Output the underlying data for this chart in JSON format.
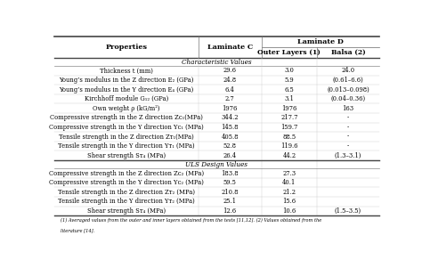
{
  "col_headers": [
    "Properties",
    "Laminate C",
    "Outer Layers (1)",
    "Balsa (2)"
  ],
  "group_header": "Laminate D",
  "section_char": "Characteristic Values",
  "section_uls": "ULS Design Values",
  "rows_char": [
    [
      "Thickness t (mm)",
      "29.6",
      "3.0",
      "24.0"
    ],
    [
      "Young’s modulus in the Z direction E₂ (GPa)",
      "24.8",
      "5.9",
      "(0.61–6.6)"
    ],
    [
      "Young’s modulus in the Y direction E₄ (GPa)",
      "6.4",
      "6.5",
      "(0.013–0.098)"
    ],
    [
      "Kirchhoff module G₁₂ (GPa)",
      "2.7",
      "3.1",
      "(0.04–0.36)"
    ],
    [
      "Own weight ρ (kG/m²)",
      "1976",
      "1976",
      "163"
    ],
    [
      "Compressive strength in the Z direction Zᴄ₁(MPa)",
      "344.2",
      "217.7",
      "-"
    ],
    [
      "Compressive strength in the Y direction Yᴄ₁ (MPa)",
      "145.8",
      "159.7",
      "-"
    ],
    [
      "Tensile strength in the Z direction Zᴛ₁(MPa)",
      "405.8",
      "88.5",
      "-"
    ],
    [
      "Tensile strength in the Y direction Yᴛ₁ (MPa)",
      "52.8",
      "119.6",
      "-"
    ],
    [
      "Shear strength Sᴛ₄ (MPa)",
      "26.4",
      "44.2",
      "(1.3–3.1)"
    ]
  ],
  "rows_uls": [
    [
      "Compressive strength in the Z direction Zᴄ₂ (MPa)",
      "183.8",
      "27.3",
      ""
    ],
    [
      "Compressive strength in the Y direction Yᴄ₂ (MPa)",
      "59.5",
      "40.1",
      ""
    ],
    [
      "Tensile strength in the Z direction Zᴛ₂ (MPa)",
      "210.8",
      "21.2",
      ""
    ],
    [
      "Tensile strength in the Y direction Yᴛ₂ (MPa)",
      "25.1",
      "15.6",
      ""
    ],
    [
      "Shear strength Sᴛ₄ (MPa)",
      "12.6",
      "10.6",
      "(1.5–3.5)"
    ]
  ],
  "footnote_1": "(1) Averaged values from the outer and inner layers obtained from the tests [11,12]. (2) Values obtained from the",
  "footnote_2": "literature [14].",
  "font_size": 5.2,
  "header_font_size": 5.8
}
